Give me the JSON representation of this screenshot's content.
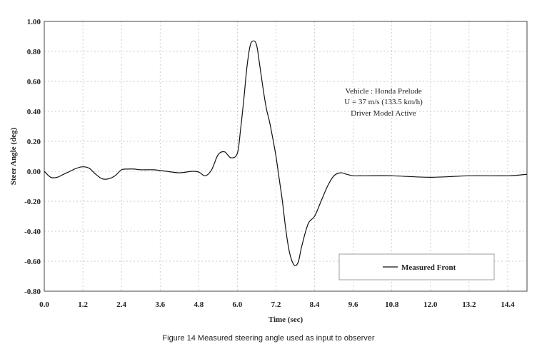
{
  "chart_data": {
    "type": "line",
    "title": "",
    "xlabel": "Time (sec)",
    "ylabel": "Steer Angle (deg)",
    "xlim": [
      0,
      15
    ],
    "ylim": [
      -0.8,
      1.0
    ],
    "x_ticks": [
      "0.0",
      "1.2",
      "2.4",
      "3.6",
      "4.8",
      "6.0",
      "7.2",
      "8.4",
      "9.6",
      "10.8",
      "12.0",
      "13.2",
      "14.4"
    ],
    "y_ticks": [
      "1.00",
      "0.80",
      "0.60",
      "0.40",
      "0.20",
      "0.00",
      "-0.20",
      "-0.40",
      "-0.60",
      "-0.80"
    ],
    "grid": true,
    "legend_position": "bottom-right",
    "annotation": [
      "Vehicle : Honda Prelude",
      "U = 37 m/s (133.5 km/h)",
      "Driver Model Active"
    ],
    "series": [
      {
        "name": "Measured Front",
        "color": "#111111",
        "x": [
          0.0,
          0.2,
          0.4,
          0.6,
          0.8,
          1.0,
          1.2,
          1.4,
          1.6,
          1.8,
          2.0,
          2.2,
          2.4,
          2.6,
          2.8,
          3.0,
          3.4,
          3.8,
          4.2,
          4.6,
          4.8,
          5.0,
          5.2,
          5.4,
          5.6,
          5.8,
          6.0,
          6.1,
          6.2,
          6.3,
          6.4,
          6.5,
          6.6,
          6.7,
          6.8,
          6.9,
          7.0,
          7.1,
          7.2,
          7.3,
          7.4,
          7.5,
          7.6,
          7.7,
          7.8,
          7.9,
          8.0,
          8.2,
          8.4,
          8.6,
          8.8,
          9.0,
          9.2,
          9.4,
          9.6,
          10.0,
          10.8,
          12.0,
          13.2,
          14.4,
          15.0
        ],
        "values": [
          0.0,
          -0.04,
          -0.04,
          -0.02,
          0.0,
          0.02,
          0.03,
          0.02,
          -0.02,
          -0.05,
          -0.05,
          -0.03,
          0.01,
          0.015,
          0.015,
          0.01,
          0.01,
          0.0,
          -0.01,
          0.0,
          -0.005,
          -0.03,
          0.01,
          0.11,
          0.13,
          0.09,
          0.12,
          0.28,
          0.48,
          0.7,
          0.84,
          0.87,
          0.84,
          0.7,
          0.55,
          0.42,
          0.33,
          0.22,
          0.1,
          -0.05,
          -0.2,
          -0.38,
          -0.52,
          -0.6,
          -0.63,
          -0.6,
          -0.5,
          -0.35,
          -0.3,
          -0.2,
          -0.1,
          -0.03,
          -0.01,
          -0.02,
          -0.03,
          -0.03,
          -0.03,
          -0.04,
          -0.03,
          -0.03,
          -0.02
        ]
      }
    ]
  },
  "caption": "Figure 14  Measured steering angle used as input to observer"
}
